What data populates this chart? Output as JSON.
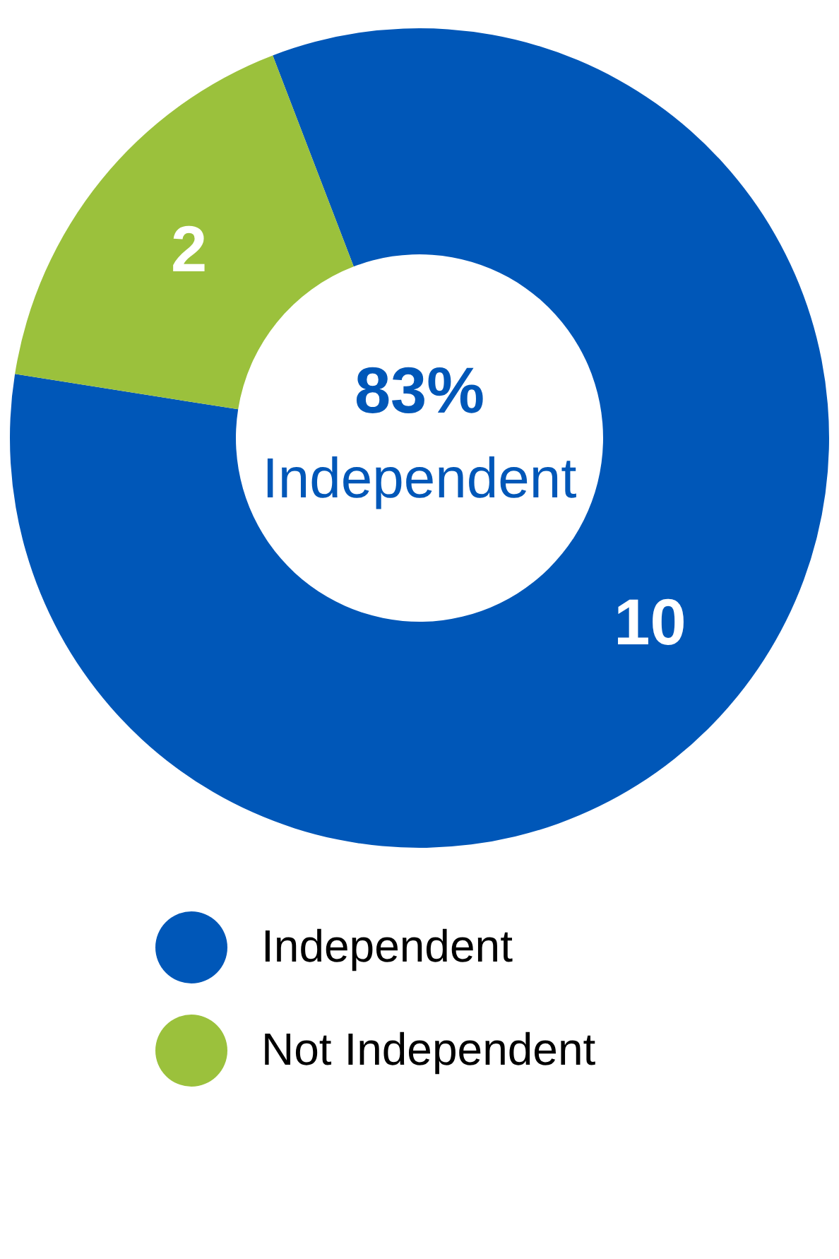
{
  "chart_data": {
    "type": "donut",
    "categories": [
      "Independent",
      "Not Independent"
    ],
    "values": [
      10,
      2
    ],
    "colors": [
      "#0057b8",
      "#9bc13c"
    ],
    "data_labels": true,
    "legend": "bottom",
    "annotations": [
      "83%",
      "Independent"
    ]
  }
}
